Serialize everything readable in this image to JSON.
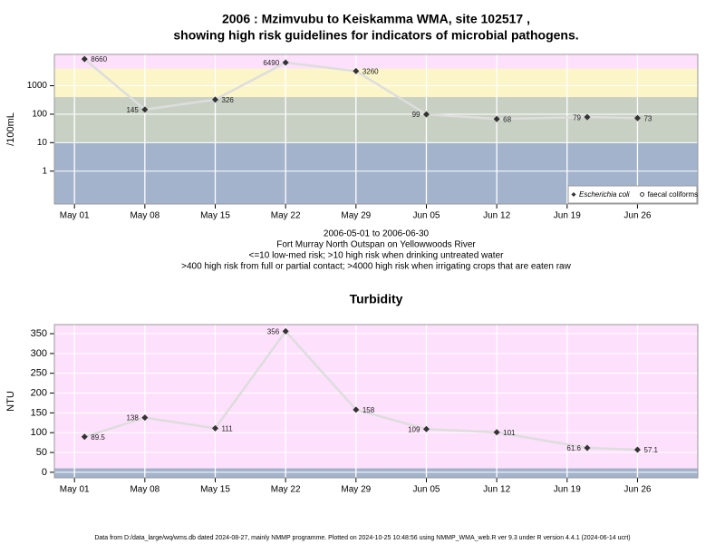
{
  "chart_data": [
    {
      "type": "line",
      "title": [
        "2006 : Mzimvubu to Keiskamma WMA, site 102517 ,",
        "showing high risk guidelines for indicators of microbial pathogens."
      ],
      "notes": [
        "2006-05-01 to 2006-06-30",
        "Fort Murray North Outspan on Yellowwoods River",
        "<=10 low-med risk; >10 high risk when drinking untreated water",
        ">400 high risk from full or partial contact; >4000 high risk when irrigating crops that are eaten raw"
      ],
      "y_label": "/100mL",
      "x": [
        "2006-05-02",
        "2006-05-08",
        "2006-05-15",
        "2006-05-22",
        "2006-05-29",
        "2006-06-05",
        "2006-06-12",
        "2006-06-21",
        "2006-06-26"
      ],
      "series": [
        {
          "name": "Escherichia coli",
          "color": "#dddddd",
          "marker_color": "#333333",
          "marker": "diamond",
          "values": [
            8660,
            145,
            326,
            6490,
            3260,
            99,
            68,
            79,
            73
          ]
        },
        {
          "name": "faecal coliforms",
          "color": "#dddddd",
          "marker_color": "#333333",
          "marker": "circle",
          "values": [
            null,
            null,
            null,
            null,
            null,
            null,
            null,
            null,
            null
          ]
        }
      ],
      "log_y": true,
      "ylim": [
        0.07,
        12600
      ],
      "yticks": [
        1,
        10,
        100,
        1000
      ],
      "xlim": [
        "2006-04-29",
        "2006-07-02"
      ],
      "xticks": [
        {
          "value": "2006-05-01",
          "label": "May 01"
        },
        {
          "value": "2006-05-08",
          "label": "May 08"
        },
        {
          "value": "2006-05-15",
          "label": "May 15"
        },
        {
          "value": "2006-05-22",
          "label": "May 22"
        },
        {
          "value": "2006-05-29",
          "label": "May 29"
        },
        {
          "value": "2006-06-05",
          "label": "Jun 05"
        },
        {
          "value": "2006-06-12",
          "label": "Jun 12"
        },
        {
          "value": "2006-06-19",
          "label": "Jun 19"
        },
        {
          "value": "2006-06-26",
          "label": "Jun 26"
        }
      ],
      "band_edges": [
        10,
        400,
        4000
      ],
      "band_colors": [
        "#a3b3cc",
        "#c8d0c4",
        "#fbf5c8",
        "#fde0fb"
      ],
      "grid": true,
      "legend": "bottom-right"
    },
    {
      "type": "line",
      "title": [
        "Turbidity"
      ],
      "y_label": "NTU",
      "x": [
        "2006-05-02",
        "2006-05-08",
        "2006-05-15",
        "2006-05-22",
        "2006-05-29",
        "2006-06-05",
        "2006-06-12",
        "2006-06-21",
        "2006-06-26"
      ],
      "series": [
        {
          "color": "#dddddd",
          "marker_color": "#333333",
          "marker": "diamond",
          "values": [
            89.5,
            138,
            111,
            356,
            158,
            109,
            101,
            61.6,
            57.1
          ]
        }
      ],
      "log_y": false,
      "ylim": [
        -14,
        373
      ],
      "yticks": [
        0,
        50,
        100,
        150,
        200,
        250,
        300,
        350
      ],
      "xlim": [
        "2006-04-29",
        "2006-07-02"
      ],
      "xticks": [
        {
          "value": "2006-05-01",
          "label": "May 01"
        },
        {
          "value": "2006-05-08",
          "label": "May 08"
        },
        {
          "value": "2006-05-15",
          "label": "May 15"
        },
        {
          "value": "2006-05-22",
          "label": "May 22"
        },
        {
          "value": "2006-05-29",
          "label": "May 29"
        },
        {
          "value": "2006-06-05",
          "label": "Jun 05"
        },
        {
          "value": "2006-06-12",
          "label": "Jun 12"
        },
        {
          "value": "2006-06-19",
          "label": "Jun 19"
        },
        {
          "value": "2006-06-26",
          "label": "Jun 26"
        }
      ],
      "band_edges": [
        10
      ],
      "band_colors": [
        "#a3b3cc",
        "#fde0fb"
      ],
      "grid": true
    }
  ],
  "footer": "Data from D:/data_large/wq/wms.db dated 2024-08-27, mainly NMMP programme. Plotted on 2024-10-25 10:48:56 using NMMP_WMA_web.R ver 9.3 under R version 4.4.1 (2024-06-14 ucrt)"
}
